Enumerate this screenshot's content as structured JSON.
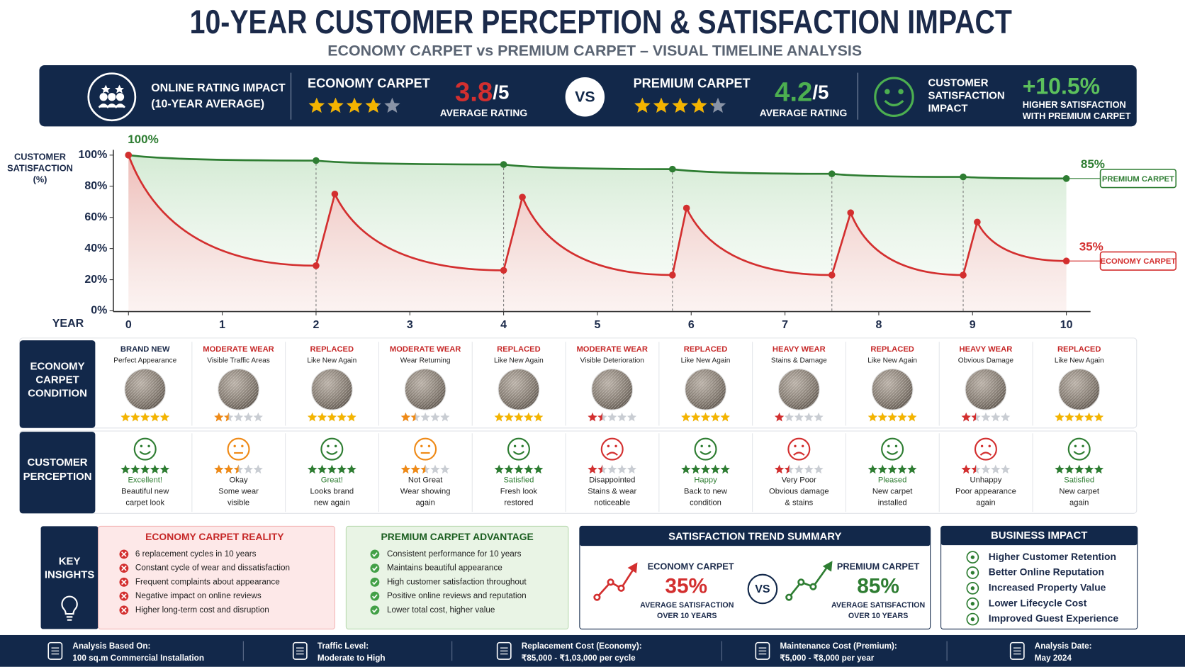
{
  "header": {
    "title": "10-YEAR CUSTOMER PERCEPTION & SATISFACTION IMPACT",
    "subtitle": "ECONOMY CARPET vs PREMIUM CARPET – VISUAL TIMELINE ANALYSIS"
  },
  "rating_bar": {
    "label": [
      "ONLINE RATING IMPACT",
      "(10-YEAR AVERAGE)"
    ],
    "economy": {
      "name": "ECONOMY CARPET",
      "rating": 3.8,
      "out_of": "/5",
      "caption": "AVERAGE RATING",
      "color": "#d32f2f"
    },
    "vs": "VS",
    "premium": {
      "name": "PREMIUM CARPET",
      "rating": 4.2,
      "out_of": "/5",
      "caption": "AVERAGE RATING",
      "color": "#4caf50"
    },
    "impact_label": [
      "CUSTOMER",
      "SATISFACTION",
      "IMPACT"
    ],
    "impact_value": "+10.5%",
    "impact_caption": [
      "HIGHER SATISFACTION",
      "WITH PREMIUM CARPET"
    ]
  },
  "chart_data": {
    "type": "line",
    "y_label": [
      "CUSTOMER",
      "SATISFACTION",
      "(%)"
    ],
    "x_label": "YEAR",
    "xlim": [
      0,
      10
    ],
    "xticks": [
      0,
      1,
      2,
      3,
      4,
      5,
      6,
      7,
      8,
      9,
      10
    ],
    "ylim": [
      0,
      100
    ],
    "yticks": [
      {
        "value": 0,
        "label": "0%"
      },
      {
        "value": 20,
        "label": "20%"
      },
      {
        "value": 40,
        "label": "40%"
      },
      {
        "value": 60,
        "label": "60%"
      },
      {
        "value": 80,
        "label": "80%"
      },
      {
        "value": 100,
        "label": "100%"
      }
    ],
    "grid": false,
    "series": [
      {
        "name": "PREMIUM CARPET",
        "color": "#2e7d32",
        "x": [
          0,
          2,
          4,
          5.8,
          7.5,
          8.9,
          10
        ],
        "values": [
          100,
          96.5,
          94,
          91,
          88,
          86,
          85
        ]
      },
      {
        "name": "ECONOMY CARPET",
        "color": "#d32f2f",
        "x": [
          0,
          2,
          2.2,
          4,
          4.2,
          5.8,
          5.95,
          7.5,
          7.7,
          8.9,
          9.05,
          10
        ],
        "values": [
          100,
          29,
          75,
          26,
          73,
          23,
          66,
          23,
          63,
          23,
          57,
          32
        ]
      }
    ],
    "annotations": [
      "100%",
      "85%",
      "35%"
    ]
  },
  "condition_row": {
    "label": [
      "ECONOMY",
      "CARPET",
      "CONDITION"
    ],
    "items": [
      {
        "status": "BRAND NEW",
        "detail": "Perfect Appearance",
        "stars": 5,
        "color": "#1b2a4a",
        "star_color": "#f4b400"
      },
      {
        "status": "MODERATE WEAR",
        "detail": "Visible Traffic Areas",
        "stars": 1.5,
        "color": "#c62828",
        "star_color": "#ef8a17"
      },
      {
        "status": "REPLACED",
        "detail": "Like New Again",
        "stars": 5,
        "color": "#c62828",
        "star_color": "#f4b400"
      },
      {
        "status": "MODERATE WEAR",
        "detail": "Wear Returning",
        "stars": 1.5,
        "color": "#c62828",
        "star_color": "#ef8a17"
      },
      {
        "status": "REPLACED",
        "detail": "Like New Again",
        "stars": 5,
        "color": "#c62828",
        "star_color": "#f4b400"
      },
      {
        "status": "MODERATE WEAR",
        "detail": "Visible Deterioration",
        "stars": 1.5,
        "color": "#c62828",
        "star_color": "#d32f2f"
      },
      {
        "status": "REPLACED",
        "detail": "Like New Again",
        "stars": 5,
        "color": "#c62828",
        "star_color": "#f4b400"
      },
      {
        "status": "HEAVY WEAR",
        "detail": "Stains & Damage",
        "stars": 1,
        "color": "#c62828",
        "star_color": "#d32f2f"
      },
      {
        "status": "REPLACED",
        "detail": "Like New Again",
        "stars": 5,
        "color": "#c62828",
        "star_color": "#f4b400"
      },
      {
        "status": "HEAVY WEAR",
        "detail": "Obvious Damage",
        "stars": 1.5,
        "color": "#c62828",
        "star_color": "#d32f2f"
      },
      {
        "status": "REPLACED",
        "detail": "Like New Again",
        "stars": 5,
        "color": "#c62828",
        "star_color": "#f4b400"
      }
    ]
  },
  "perception_row": {
    "label": [
      "CUSTOMER",
      "PERCEPTION"
    ],
    "items": [
      {
        "heading": "Excellent!",
        "lines": [
          "Beautiful new",
          "carpet look"
        ],
        "stars": 5,
        "mood": "happy",
        "color": "#2e7d32"
      },
      {
        "heading": "Okay",
        "lines": [
          "Some wear",
          "visible"
        ],
        "stars": 2.5,
        "mood": "neutral",
        "color": "#ef8a17"
      },
      {
        "heading": "Great!",
        "lines": [
          "Looks brand",
          "new again"
        ],
        "stars": 5,
        "mood": "happy",
        "color": "#2e7d32"
      },
      {
        "heading": "Not Great",
        "lines": [
          "Wear showing",
          "again"
        ],
        "stars": 2.5,
        "mood": "neutral",
        "color": "#ef8a17"
      },
      {
        "heading": "Satisfied",
        "lines": [
          "Fresh look",
          "restored"
        ],
        "stars": 5,
        "mood": "happy",
        "color": "#2e7d32"
      },
      {
        "heading": "Disappointed",
        "lines": [
          "Stains & wear",
          "noticeable"
        ],
        "stars": 1.5,
        "mood": "sad",
        "color": "#d32f2f"
      },
      {
        "heading": "Happy",
        "lines": [
          "Back to new",
          "condition"
        ],
        "stars": 5,
        "mood": "happy",
        "color": "#2e7d32"
      },
      {
        "heading": "Very Poor",
        "lines": [
          "Obvious damage",
          "& stains"
        ],
        "stars": 1.5,
        "mood": "sad",
        "color": "#d32f2f"
      },
      {
        "heading": "Pleased",
        "lines": [
          "New carpet",
          "installed"
        ],
        "stars": 5,
        "mood": "happy",
        "color": "#2e7d32"
      },
      {
        "heading": "Unhappy",
        "lines": [
          "Poor appearance",
          "again"
        ],
        "stars": 1.5,
        "mood": "sad",
        "color": "#d32f2f"
      },
      {
        "heading": "Satisfied",
        "lines": [
          "New carpet",
          "again"
        ],
        "stars": 5,
        "mood": "happy",
        "color": "#2e7d32"
      }
    ]
  },
  "key_insights": {
    "label": [
      "KEY",
      "INSIGHTS"
    ],
    "economy": {
      "title": "ECONOMY CARPET REALITY",
      "items": [
        "6 replacement cycles in 10 years",
        "Constant cycle of wear and dissatisfaction",
        "Frequent complaints about appearance",
        "Negative impact on online reviews",
        "Higher long-term cost and disruption"
      ]
    },
    "premium": {
      "title": "PREMIUM CARPET ADVANTAGE",
      "items": [
        "Consistent performance for 10 years",
        "Maintains beautiful appearance",
        "High customer satisfaction throughout",
        "Positive online reviews and reputation",
        "Lower total cost, higher value"
      ]
    }
  },
  "trend_summary": {
    "title": "SATISFACTION TREND SUMMARY",
    "vs": "VS",
    "economy": {
      "name": "ECONOMY CARPET",
      "value": "35%",
      "caption": [
        "AVERAGE SATISFACTION",
        "OVER 10 YEARS"
      ]
    },
    "premium": {
      "name": "PREMIUM CARPET",
      "value": "85%",
      "caption": [
        "AVERAGE SATISFACTION",
        "OVER 10 YEARS"
      ]
    }
  },
  "business_impact": {
    "title": "BUSINESS IMPACT",
    "items": [
      "Higher Customer Retention",
      "Better Online Reputation",
      "Increased Property Value",
      "Lower Lifecycle Cost",
      "Improved Guest Experience"
    ]
  },
  "footer": {
    "items": [
      {
        "label": "Analysis Based On:",
        "value": "100 sq.m Commercial Installation"
      },
      {
        "label": "Traffic Level:",
        "value": "Moderate to High"
      },
      {
        "label": "Replacement Cost (Economy):",
        "value": "₹85,000 - ₹1,03,000 per cycle"
      },
      {
        "label": "Maintenance Cost (Premium):",
        "value": "₹5,000 - ₹8,000 per year"
      },
      {
        "label": "Analysis Date:",
        "value": "May 2024"
      }
    ]
  }
}
